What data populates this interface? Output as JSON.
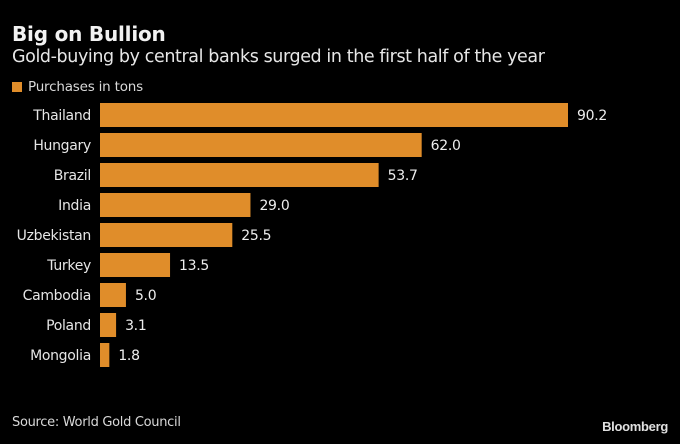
{
  "chart_data": {
    "type": "bar",
    "orientation": "horizontal",
    "title": "Big on Bullion",
    "subtitle": "Gold-buying by central banks surged in the first half of the year",
    "legend": {
      "label": "Purchases in tons",
      "placement": "top-left"
    },
    "categories": [
      "Thailand",
      "Hungary",
      "Brazil",
      "India",
      "Uzbekistan",
      "Turkey",
      "Cambodia",
      "Poland",
      "Mongolia"
    ],
    "values": [
      90.2,
      62.0,
      53.7,
      29.0,
      25.5,
      13.5,
      5.0,
      3.1,
      1.8
    ],
    "value_labels": [
      "90.2",
      "62.0",
      "53.7",
      "29.0",
      "25.5",
      "13.5",
      "5.0",
      "3.1",
      "1.8"
    ],
    "xlabel": "",
    "ylabel": "",
    "xlim": [
      0,
      90.2
    ],
    "grid": false,
    "bar_color": "#E08D2A",
    "source": "Source: World Gold Council",
    "brand": "Bloomberg"
  }
}
